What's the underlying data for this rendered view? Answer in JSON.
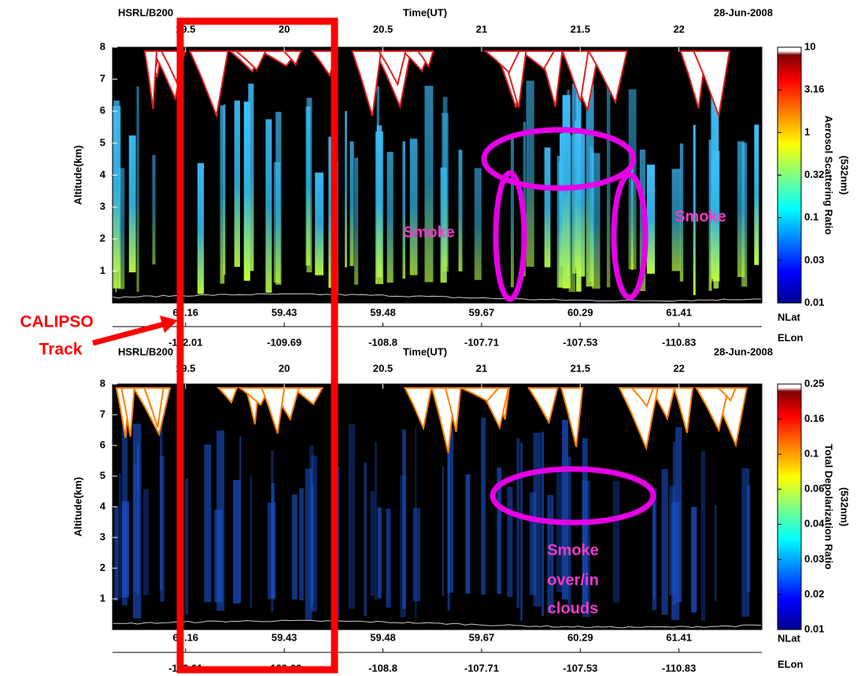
{
  "chart_data": [
    {
      "type": "curtain",
      "source": "HSRL/B200",
      "x_label": "Time(UT)",
      "date": "28-Jun-2008",
      "y_label": "Altitude(km)",
      "colorbar_label": [
        "Aerosol Scattering Ratio",
        "(532nm)"
      ],
      "xlim": [
        19.13,
        22.42
      ],
      "xticks": [
        19.5,
        20,
        20.5,
        21,
        21.5,
        22
      ],
      "ylim": [
        0,
        8
      ],
      "yticks": [
        1,
        2,
        3,
        4,
        5,
        6,
        7,
        8
      ],
      "lat_label": "NLat",
      "lat_ticks": [
        60.16,
        59.43,
        59.48,
        59.67,
        60.29,
        61.41
      ],
      "lon_label": "ELon",
      "lon_ticks": [
        -112.01,
        -109.69,
        -108.8,
        -107.71,
        -107.53,
        -110.83
      ],
      "colorbar_ticks": [
        0.01,
        0.03,
        0.1,
        0.32,
        1,
        3.16,
        10
      ],
      "annotations": [
        [
          "Smoke"
        ],
        [
          "Smoke"
        ]
      ]
    },
    {
      "type": "curtain",
      "source": "HSRL/B200",
      "x_label": "Time(UT)",
      "date": "28-Jun-2008",
      "y_label": "Altitude(km)",
      "colorbar_label": [
        "Total Depolarization Ratio",
        "(532nm)"
      ],
      "xlim": [
        19.13,
        22.42
      ],
      "xticks": [
        19.5,
        20,
        20.5,
        21,
        21.5,
        22
      ],
      "ylim": [
        0,
        8
      ],
      "yticks": [
        1,
        2,
        3,
        4,
        5,
        6,
        7,
        8
      ],
      "lat_label": "NLat",
      "lat_ticks": [
        60.16,
        59.43,
        59.48,
        59.67,
        60.29,
        61.41
      ],
      "lon_label": "ELon",
      "lon_ticks": [
        -112.01,
        -109.69,
        -108.8,
        -107.71,
        -107.53,
        -110.83
      ],
      "colorbar_ticks": [
        0.01,
        0.02,
        0.03,
        0.04,
        0.06,
        0.1,
        0.16,
        0.25
      ],
      "annotations": [
        [
          "Smoke",
          "over/in",
          "clouds"
        ]
      ]
    }
  ],
  "callout": [
    "CALIPSO",
    "Track"
  ]
}
